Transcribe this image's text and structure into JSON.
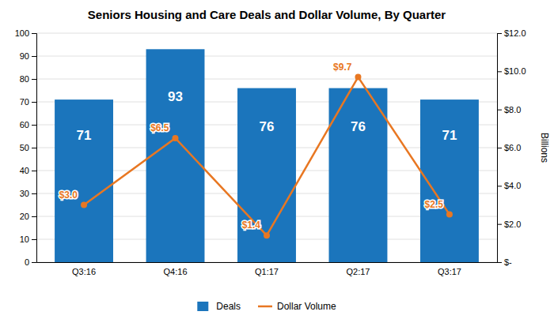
{
  "chart_data": {
    "type": "bar",
    "title": "Seniors Housing and Care Deals and Dollar Volume, By Quarter",
    "categories": [
      "Q3:16",
      "Q4:16",
      "Q1:17",
      "Q2:17",
      "Q3:17"
    ],
    "series": [
      {
        "name": "Deals",
        "type": "bar",
        "color": "#1B75BC",
        "values": [
          71,
          93,
          76,
          76,
          71
        ],
        "data_labels": true
      },
      {
        "name": "Dollar Volume",
        "type": "line",
        "axis": "y2",
        "color": "#E87722",
        "marker": "circle",
        "values": [
          3.0,
          6.5,
          1.4,
          9.7,
          2.5
        ],
        "value_labels": [
          "$3.0",
          "$6.5",
          "$1.4",
          "$9.7",
          "$2.5"
        ],
        "data_labels": true
      }
    ],
    "ylim": [
      0,
      100
    ],
    "yticks": [
      0,
      10,
      20,
      30,
      40,
      50,
      60,
      70,
      80,
      90,
      100
    ],
    "y2lim": [
      0,
      12
    ],
    "y2ticks": [
      {
        "value": 0,
        "label": "$-"
      },
      {
        "value": 2,
        "label": "$2.0"
      },
      {
        "value": 4,
        "label": "$4.0"
      },
      {
        "value": 6,
        "label": "$6.0"
      },
      {
        "value": 8,
        "label": "$8.0"
      },
      {
        "value": 10,
        "label": "$10.0"
      },
      {
        "value": 12,
        "label": "$12.0"
      }
    ],
    "y2label": "Billions",
    "grid": true,
    "legend": "bottom"
  }
}
